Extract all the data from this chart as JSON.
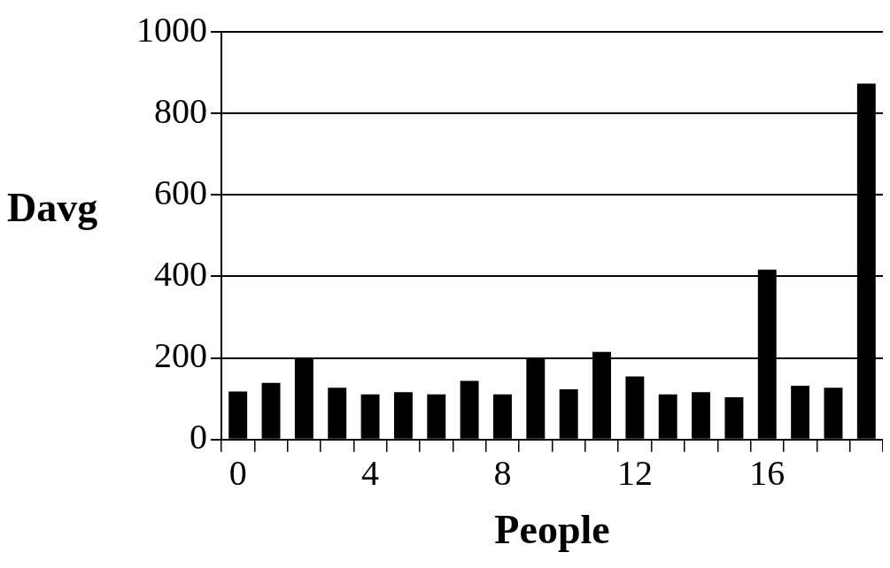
{
  "chart_data": {
    "type": "bar",
    "xlabel": "People",
    "ylabel": "Davg",
    "categories": [
      "0",
      null,
      null,
      null,
      "4",
      null,
      null,
      null,
      "8",
      null,
      null,
      null,
      "12",
      null,
      null,
      null,
      "16",
      null,
      null,
      null
    ],
    "values": [
      118,
      139,
      200,
      127,
      111,
      116,
      111,
      144,
      111,
      197,
      123,
      215,
      155,
      111,
      116,
      104,
      417,
      132,
      127,
      873
    ],
    "color": "#000000",
    "ylim": [
      0,
      1000
    ],
    "yticks": [
      0,
      200,
      400,
      600,
      800,
      1000
    ],
    "grid": "y",
    "legend": false
  }
}
